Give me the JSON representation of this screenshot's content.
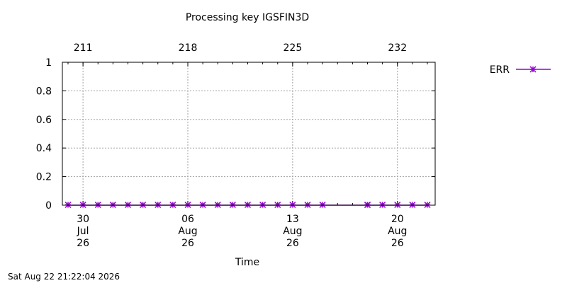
{
  "chart_data": {
    "type": "line",
    "title": "Processing key IGSFIN3D",
    "xlabel": "Time",
    "ylabel": "",
    "ylim": [
      0,
      1
    ],
    "y_ticks": [
      {
        "value": 0,
        "label": "0"
      },
      {
        "value": 0.2,
        "label": "0.2"
      },
      {
        "value": 0.4,
        "label": "0.4"
      },
      {
        "value": 0.6,
        "label": "0.6"
      },
      {
        "value": 0.8,
        "label": "0.8"
      },
      {
        "value": 1,
        "label": "1"
      }
    ],
    "xlim": [
      "2026-07-29",
      "2026-08-22"
    ],
    "x_ticks_bottom": [
      {
        "date": "2026-07-30",
        "lines": [
          "30",
          "Jul",
          "26"
        ]
      },
      {
        "date": "2026-08-06",
        "lines": [
          "06",
          "Aug",
          "26"
        ]
      },
      {
        "date": "2026-08-13",
        "lines": [
          "13",
          "Aug",
          "26"
        ]
      },
      {
        "date": "2026-08-20",
        "lines": [
          "20",
          "Aug",
          "26"
        ]
      }
    ],
    "x_ticks_top": [
      {
        "date": "2026-07-30",
        "label": "211"
      },
      {
        "date": "2026-08-06",
        "label": "218"
      },
      {
        "date": "2026-08-13",
        "label": "225"
      },
      {
        "date": "2026-08-20",
        "label": "232"
      }
    ],
    "grid": true,
    "legend_position": "top-right",
    "series": [
      {
        "name": "ERR",
        "color": "#9400d3",
        "marker": "x-star",
        "x": [
          "2026-07-29",
          "2026-07-30",
          "2026-07-31",
          "2026-08-01",
          "2026-08-02",
          "2026-08-03",
          "2026-08-04",
          "2026-08-05",
          "2026-08-06",
          "2026-08-07",
          "2026-08-08",
          "2026-08-09",
          "2026-08-10",
          "2026-08-11",
          "2026-08-12",
          "2026-08-13",
          "2026-08-14",
          "2026-08-15",
          "2026-08-18",
          "2026-08-18",
          "2026-08-19",
          "2026-08-20",
          "2026-08-21",
          "2026-08-22"
        ],
        "values": [
          0,
          0,
          0,
          0,
          0,
          0,
          0,
          0,
          0,
          0,
          0,
          0,
          0,
          0,
          0,
          0,
          0,
          0,
          0,
          0,
          0,
          0,
          0,
          0
        ]
      }
    ]
  },
  "footer_timestamp": "Sat Aug 22 21:22:04 2026"
}
